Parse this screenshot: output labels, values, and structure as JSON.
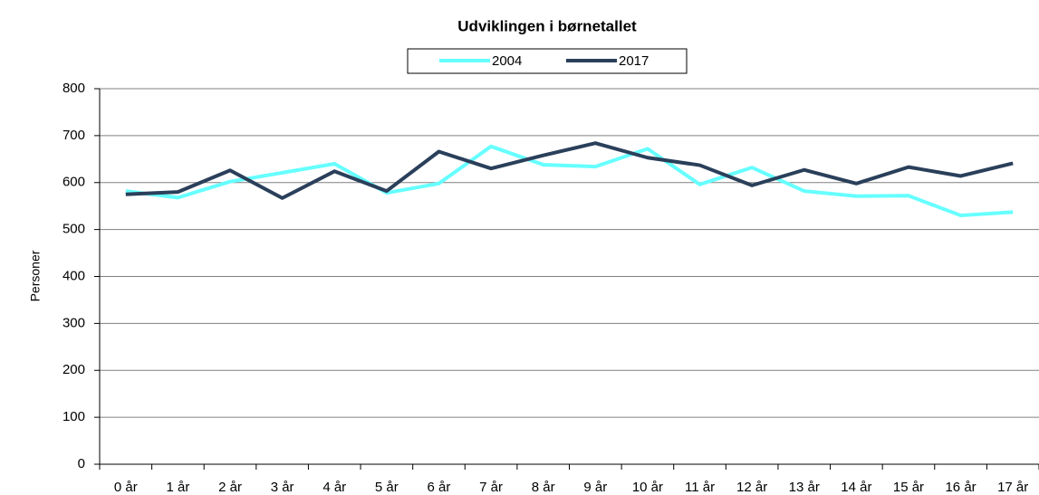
{
  "chart_data": {
    "type": "line",
    "title": "Udviklingen i børnetallet",
    "y_label": "Personer",
    "categories": [
      "0 år",
      "1 år",
      "2 år",
      "3 år",
      "4 år",
      "5 år",
      "6 år",
      "7 år",
      "8 år",
      "9 år",
      "10 år",
      "11 år",
      "12 år",
      "13 år",
      "14 år",
      "15 år",
      "16 år",
      "17 år"
    ],
    "series": [
      {
        "name": "2004",
        "color": "#66ffff",
        "values": [
          582,
          568,
          602,
          621,
          640,
          578,
          598,
          677,
          638,
          634,
          672,
          596,
          632,
          582,
          571,
          572,
          530,
          537
        ]
      },
      {
        "name": "2017",
        "color": "#2a3f5a",
        "values": [
          575,
          580,
          626,
          567,
          624,
          582,
          666,
          630,
          658,
          684,
          653,
          637,
          594,
          627,
          598,
          633,
          614,
          641
        ]
      }
    ],
    "ylim": [
      0,
      800
    ],
    "yticks": [
      0,
      100,
      200,
      300,
      400,
      500,
      600,
      700,
      800
    ],
    "grid": true
  }
}
